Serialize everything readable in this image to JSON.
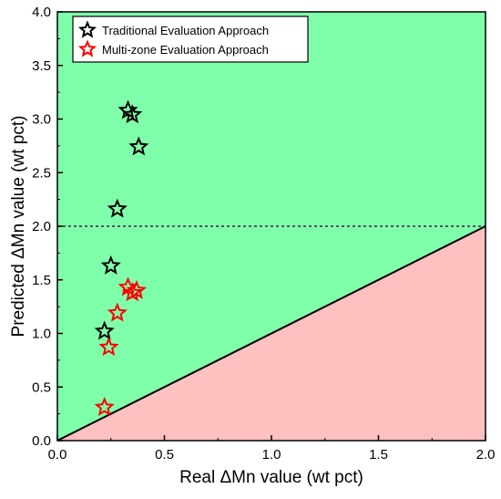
{
  "chart_data": {
    "type": "scatter",
    "xlabel": "Real ΔMn value (wt pct)",
    "ylabel": "Predicted ΔMn value (wt pct)",
    "xlim": [
      0.0,
      2.0
    ],
    "ylim": [
      0.0,
      4.0
    ],
    "xticks": [
      "0.0",
      "0.5",
      "1.0",
      "1.5",
      "2.0"
    ],
    "yticks": [
      "0.0",
      "0.5",
      "1.0",
      "1.5",
      "2.0",
      "2.5",
      "3.0",
      "3.5",
      "4.0"
    ],
    "legend_position": "top-left",
    "series": [
      {
        "name": "Traditional Evaluation Approach",
        "color": "#000000",
        "marker": "star",
        "points": [
          {
            "x": 0.33,
            "y": 3.08
          },
          {
            "x": 0.35,
            "y": 3.04
          },
          {
            "x": 0.38,
            "y": 2.74
          },
          {
            "x": 0.28,
            "y": 2.16
          },
          {
            "x": 0.25,
            "y": 1.63
          },
          {
            "x": 0.22,
            "y": 1.02
          }
        ]
      },
      {
        "name": "Multi-zone Evaluation Approach",
        "color": "#ff0000",
        "marker": "star",
        "points": [
          {
            "x": 0.33,
            "y": 1.43
          },
          {
            "x": 0.35,
            "y": 1.38
          },
          {
            "x": 0.37,
            "y": 1.4
          },
          {
            "x": 0.28,
            "y": 1.19
          },
          {
            "x": 0.24,
            "y": 0.87
          },
          {
            "x": 0.22,
            "y": 0.31
          }
        ]
      }
    ],
    "reference_lines": [
      {
        "kind": "horizontal",
        "y": 2.0,
        "style": "dotted",
        "color": "#555555"
      },
      {
        "kind": "diagonal",
        "from": [
          0.0,
          0.0
        ],
        "to": [
          2.0,
          2.0
        ],
        "style": "solid",
        "color": "#000000"
      }
    ],
    "regions": {
      "above_diagonal_color": "#80ffaa",
      "below_diagonal_color": "#ffc0c0"
    }
  }
}
